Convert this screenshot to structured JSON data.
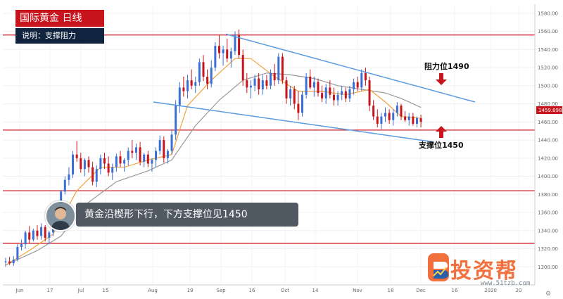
{
  "title": "国际黄金  日线",
  "subtitle": "说明：支撑阻力",
  "banner": "黄金沿楔形下行，下方支撑位见1450",
  "watermark": {
    "name": "投资帮",
    "url": "www.51tzb.com"
  },
  "colors": {
    "up": "#3b6fd6",
    "down": "#c8141c",
    "ma_fast": "#f0a33c",
    "ma_slow": "#9a9a9a",
    "trend": "#5b9be0",
    "hline": "#d21f2a"
  },
  "chart_data": {
    "type": "candlestick",
    "instrument": "国际黄金",
    "timeframe": "日线",
    "ylim": [
      1280,
      1590
    ],
    "y_ticks": [
      1300,
      1320,
      1340,
      1360,
      1380,
      1400,
      1420,
      1440,
      1460,
      1480,
      1500,
      1520,
      1540,
      1560,
      1580
    ],
    "x_ticks": [
      "Jun",
      "17",
      "Jul",
      "15",
      "Aug",
      "19",
      "Sep",
      "16",
      "Oct",
      "14",
      "Nov",
      "18",
      "Dec",
      "16",
      "2020",
      "20"
    ],
    "current_price": "1459.898",
    "horizontal_levels": [
      1556,
      1451,
      1384,
      1326
    ],
    "annotations": [
      {
        "text": "阻力位1490",
        "price": 1490,
        "arrow": "down"
      },
      {
        "text": "支撑位1450",
        "price": 1450,
        "arrow": "up"
      }
    ],
    "trendlines": [
      {
        "name": "upper",
        "points": [
          [
            "Sep 3",
            1557
          ],
          [
            "Jan 2",
            1482
          ]
        ]
      },
      {
        "name": "lower",
        "points": [
          [
            "Aug 7",
            1482
          ],
          [
            "Dec 19",
            1438
          ]
        ]
      }
    ],
    "candles": [
      [
        1305,
        1310,
        1300,
        1306
      ],
      [
        1306,
        1311,
        1302,
        1304
      ],
      [
        1304,
        1312,
        1301,
        1308
      ],
      [
        1308,
        1325,
        1306,
        1322
      ],
      [
        1322,
        1330,
        1318,
        1325
      ],
      [
        1325,
        1340,
        1320,
        1338
      ],
      [
        1338,
        1345,
        1326,
        1330
      ],
      [
        1330,
        1342,
        1328,
        1340
      ],
      [
        1340,
        1346,
        1330,
        1334
      ],
      [
        1334,
        1348,
        1330,
        1344
      ],
      [
        1344,
        1346,
        1328,
        1332
      ],
      [
        1332,
        1340,
        1325,
        1338
      ],
      [
        1338,
        1352,
        1334,
        1348
      ],
      [
        1348,
        1362,
        1345,
        1360
      ],
      [
        1360,
        1385,
        1356,
        1383
      ],
      [
        1383,
        1400,
        1380,
        1396
      ],
      [
        1396,
        1410,
        1390,
        1402
      ],
      [
        1402,
        1428,
        1398,
        1424
      ],
      [
        1424,
        1439,
        1416,
        1420
      ],
      [
        1420,
        1426,
        1404,
        1408
      ],
      [
        1408,
        1420,
        1400,
        1418
      ],
      [
        1418,
        1422,
        1404,
        1410
      ],
      [
        1410,
        1416,
        1390,
        1394
      ],
      [
        1394,
        1412,
        1388,
        1408
      ],
      [
        1408,
        1424,
        1402,
        1420
      ],
      [
        1420,
        1426,
        1408,
        1414
      ],
      [
        1414,
        1422,
        1400,
        1404
      ],
      [
        1404,
        1414,
        1396,
        1410
      ],
      [
        1410,
        1425,
        1405,
        1422
      ],
      [
        1422,
        1428,
        1410,
        1414
      ],
      [
        1414,
        1420,
        1405,
        1418
      ],
      [
        1418,
        1432,
        1412,
        1428
      ],
      [
        1428,
        1440,
        1420,
        1426
      ],
      [
        1426,
        1436,
        1418,
        1432
      ],
      [
        1432,
        1438,
        1412,
        1416
      ],
      [
        1416,
        1426,
        1410,
        1424
      ],
      [
        1424,
        1428,
        1410,
        1414
      ],
      [
        1414,
        1420,
        1405,
        1418
      ],
      [
        1418,
        1432,
        1410,
        1428
      ],
      [
        1428,
        1445,
        1424,
        1440
      ],
      [
        1440,
        1444,
        1415,
        1420
      ],
      [
        1420,
        1430,
        1414,
        1428
      ],
      [
        1428,
        1452,
        1424,
        1446
      ],
      [
        1446,
        1484,
        1440,
        1478
      ],
      [
        1478,
        1504,
        1470,
        1498
      ],
      [
        1498,
        1510,
        1488,
        1494
      ],
      [
        1494,
        1512,
        1486,
        1506
      ],
      [
        1506,
        1518,
        1496,
        1500
      ],
      [
        1500,
        1510,
        1492,
        1504
      ],
      [
        1504,
        1530,
        1500,
        1526
      ],
      [
        1526,
        1534,
        1505,
        1510
      ],
      [
        1510,
        1518,
        1496,
        1502
      ],
      [
        1502,
        1528,
        1498,
        1520
      ],
      [
        1520,
        1548,
        1516,
        1544
      ],
      [
        1544,
        1556,
        1530,
        1536
      ],
      [
        1536,
        1544,
        1522,
        1540
      ],
      [
        1540,
        1552,
        1526,
        1530
      ],
      [
        1530,
        1542,
        1520,
        1538
      ],
      [
        1538,
        1560,
        1534,
        1556
      ],
      [
        1556,
        1562,
        1530,
        1534
      ],
      [
        1534,
        1540,
        1500,
        1506
      ],
      [
        1506,
        1514,
        1492,
        1498
      ],
      [
        1498,
        1506,
        1486,
        1500
      ],
      [
        1500,
        1512,
        1494,
        1508
      ],
      [
        1508,
        1514,
        1490,
        1496
      ],
      [
        1496,
        1512,
        1490,
        1506
      ],
      [
        1506,
        1512,
        1496,
        1500
      ],
      [
        1500,
        1518,
        1496,
        1514
      ],
      [
        1514,
        1524,
        1500,
        1506
      ],
      [
        1506,
        1536,
        1502,
        1532
      ],
      [
        1532,
        1536,
        1502,
        1506
      ],
      [
        1506,
        1510,
        1480,
        1486
      ],
      [
        1486,
        1500,
        1478,
        1496
      ],
      [
        1496,
        1500,
        1474,
        1480
      ],
      [
        1480,
        1494,
        1462,
        1470
      ],
      [
        1470,
        1494,
        1466,
        1490
      ],
      [
        1490,
        1514,
        1486,
        1510
      ],
      [
        1510,
        1518,
        1496,
        1498
      ],
      [
        1498,
        1510,
        1488,
        1504
      ],
      [
        1504,
        1508,
        1488,
        1492
      ],
      [
        1492,
        1500,
        1482,
        1486
      ],
      [
        1486,
        1502,
        1480,
        1498
      ],
      [
        1498,
        1506,
        1486,
        1490
      ],
      [
        1490,
        1498,
        1478,
        1484
      ],
      [
        1484,
        1494,
        1478,
        1490
      ],
      [
        1490,
        1500,
        1484,
        1494
      ],
      [
        1494,
        1498,
        1482,
        1486
      ],
      [
        1486,
        1500,
        1482,
        1496
      ],
      [
        1496,
        1508,
        1490,
        1504
      ],
      [
        1504,
        1510,
        1494,
        1498
      ],
      [
        1498,
        1518,
        1494,
        1514
      ],
      [
        1514,
        1520,
        1500,
        1506
      ],
      [
        1506,
        1510,
        1472,
        1478
      ],
      [
        1478,
        1484,
        1462,
        1466
      ],
      [
        1466,
        1474,
        1454,
        1458
      ],
      [
        1458,
        1470,
        1452,
        1466
      ],
      [
        1466,
        1476,
        1460,
        1470
      ],
      [
        1470,
        1474,
        1458,
        1462
      ],
      [
        1462,
        1474,
        1456,
        1470
      ],
      [
        1470,
        1482,
        1466,
        1478
      ],
      [
        1478,
        1480,
        1462,
        1466
      ],
      [
        1466,
        1472,
        1460,
        1462
      ],
      [
        1462,
        1470,
        1456,
        1466
      ],
      [
        1466,
        1470,
        1456,
        1458
      ],
      [
        1458,
        1466,
        1454,
        1464
      ],
      [
        1464,
        1468,
        1454,
        1460
      ]
    ],
    "ma_fast": [
      [
        0,
        1302
      ],
      [
        6,
        1318
      ],
      [
        12,
        1336
      ],
      [
        18,
        1384
      ],
      [
        24,
        1410
      ],
      [
        30,
        1410
      ],
      [
        36,
        1418
      ],
      [
        42,
        1424
      ],
      [
        46,
        1478
      ],
      [
        52,
        1506
      ],
      [
        58,
        1530
      ],
      [
        62,
        1530
      ],
      [
        68,
        1510
      ],
      [
        74,
        1494
      ],
      [
        80,
        1494
      ],
      [
        86,
        1490
      ],
      [
        92,
        1496
      ],
      [
        96,
        1482
      ],
      [
        100,
        1466
      ],
      [
        105,
        1464
      ]
    ],
    "ma_slow": [
      [
        0,
        1302
      ],
      [
        8,
        1318
      ],
      [
        14,
        1334
      ],
      [
        20,
        1368
      ],
      [
        28,
        1394
      ],
      [
        36,
        1406
      ],
      [
        42,
        1418
      ],
      [
        48,
        1456
      ],
      [
        54,
        1484
      ],
      [
        60,
        1506
      ],
      [
        66,
        1514
      ],
      [
        72,
        1512
      ],
      [
        78,
        1508
      ],
      [
        84,
        1500
      ],
      [
        90,
        1496
      ],
      [
        96,
        1492
      ],
      [
        100,
        1486
      ],
      [
        105,
        1476
      ]
    ]
  }
}
